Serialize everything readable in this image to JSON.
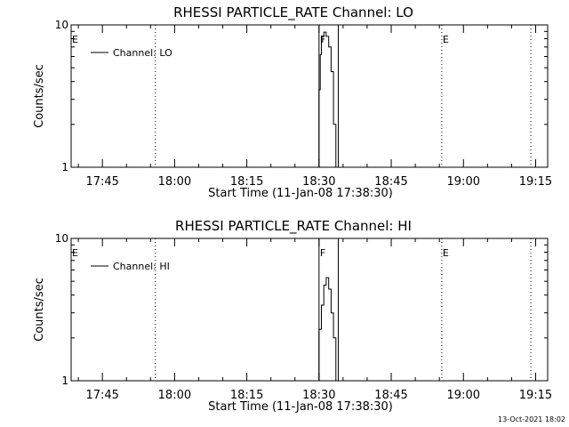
{
  "footer": {
    "timestamp": "13-Oct-2021 18:02"
  },
  "chart_data": [
    {
      "type": "line",
      "title": "RHESSI PARTICLE_RATE Channel: LO",
      "xlabel": "Start Time (11-Jan-08 17:38:30)",
      "ylabel": "Counts/sec",
      "yscale": "log",
      "ylim": [
        1,
        10
      ],
      "y_ticks": [
        {
          "value": 1,
          "label": "1"
        },
        {
          "value": 10,
          "label": "10"
        }
      ],
      "x_ticks": [
        "17:45",
        "18:00",
        "18:15",
        "18:30",
        "18:45",
        "19:00",
        "19:15"
      ],
      "grid": false,
      "legend": "top-left",
      "series": [
        {
          "name": "Channel: LO",
          "x": [
            "18:29:30",
            "18:30:00",
            "18:30:15",
            "18:30:30",
            "18:30:45",
            "18:31:00",
            "18:31:30",
            "18:32:00",
            "18:32:30",
            "18:33:00",
            "18:33:30"
          ],
          "y": [
            1.0,
            3.5,
            6.2,
            7.6,
            8.3,
            8.9,
            8.3,
            7.0,
            4.7,
            2.0,
            1.0
          ]
        }
      ],
      "vertical_markers": [
        {
          "time": "17:38:30",
          "style": "dotted",
          "label": "E"
        },
        {
          "time": "17:56:00",
          "style": "dotted",
          "label": ""
        },
        {
          "time": "18:30:00",
          "style": "solid",
          "label": "F"
        },
        {
          "time": "18:34:00",
          "style": "solid",
          "label": ""
        },
        {
          "time": "18:55:30",
          "style": "dotted",
          "label": "E"
        },
        {
          "time": "19:14:00",
          "style": "dotted",
          "label": ""
        }
      ]
    },
    {
      "type": "line",
      "title": "RHESSI PARTICLE_RATE Channel: HI",
      "xlabel": "Start Time (11-Jan-08 17:38:30)",
      "ylabel": "Counts/sec",
      "yscale": "log",
      "ylim": [
        1,
        10
      ],
      "y_ticks": [
        {
          "value": 1,
          "label": "1"
        },
        {
          "value": 10,
          "label": "10"
        }
      ],
      "x_ticks": [
        "17:45",
        "18:00",
        "18:15",
        "18:30",
        "18:45",
        "19:00",
        "19:15"
      ],
      "grid": false,
      "legend": "top-left",
      "series": [
        {
          "name": "Channel: HI",
          "x": [
            "18:29:30",
            "18:30:00",
            "18:30:30",
            "18:31:00",
            "18:31:30",
            "18:32:00",
            "18:32:30",
            "18:33:00",
            "18:33:30"
          ],
          "y": [
            1.0,
            2.3,
            3.4,
            4.7,
            5.3,
            4.4,
            3.0,
            2.0,
            1.0
          ]
        }
      ],
      "vertical_markers": [
        {
          "time": "17:38:30",
          "style": "dotted",
          "label": "E"
        },
        {
          "time": "17:56:00",
          "style": "dotted",
          "label": ""
        },
        {
          "time": "18:30:00",
          "style": "solid",
          "label": "F"
        },
        {
          "time": "18:34:00",
          "style": "solid",
          "label": ""
        },
        {
          "time": "18:55:30",
          "style": "dotted",
          "label": "E"
        },
        {
          "time": "19:14:00",
          "style": "dotted",
          "label": ""
        }
      ]
    }
  ]
}
